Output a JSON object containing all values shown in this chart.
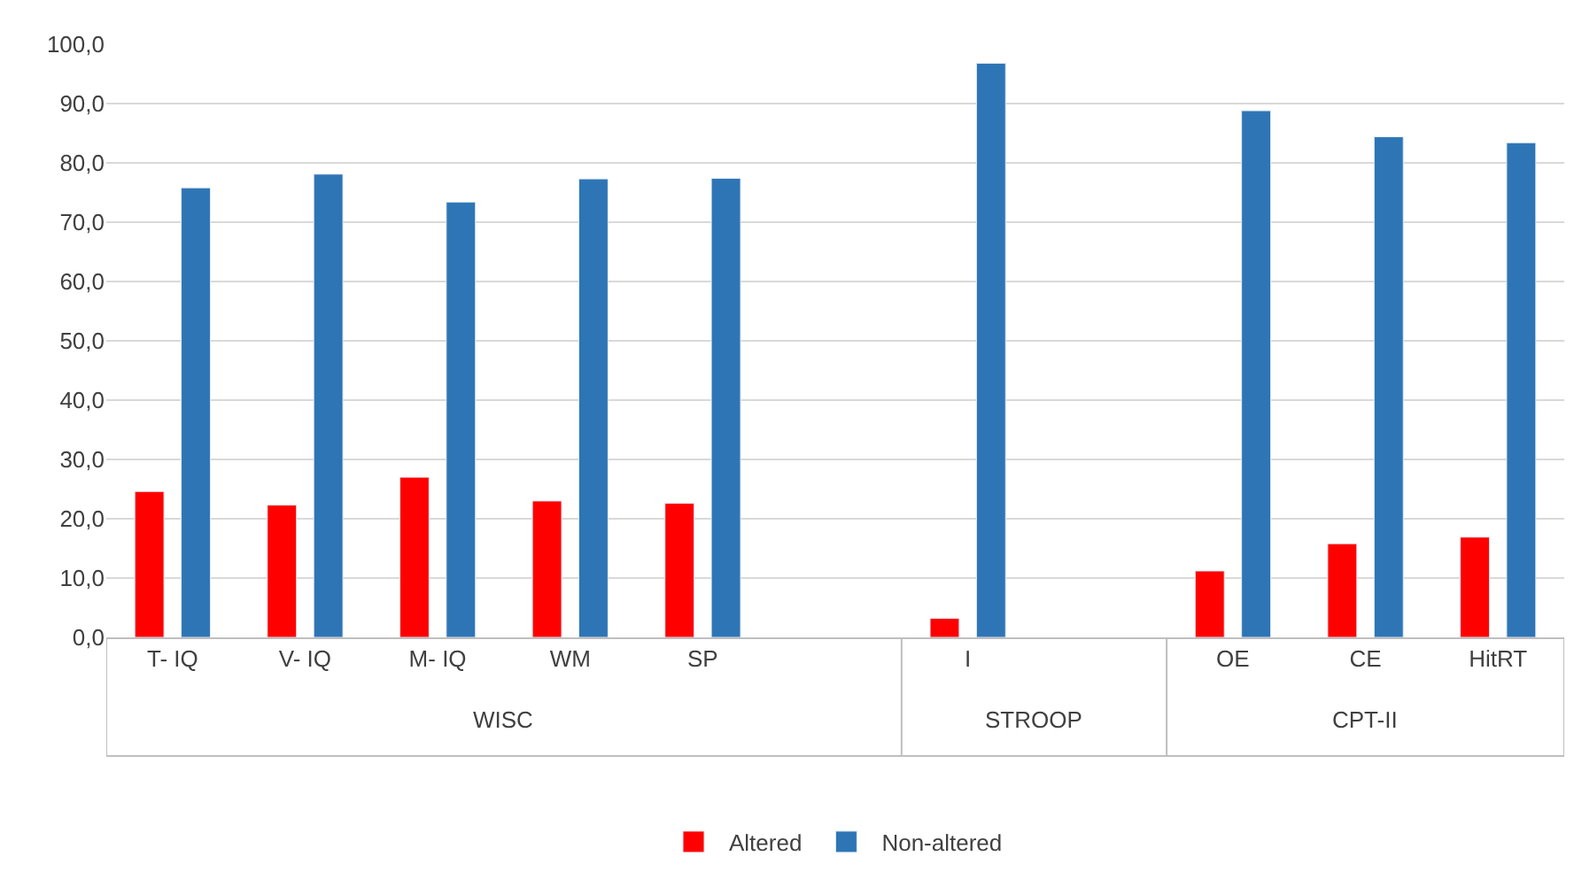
{
  "chart_data": {
    "type": "bar",
    "categories": [
      "T- IQ",
      "V- IQ",
      "M- IQ",
      "WM",
      "SP",
      null,
      "I",
      null,
      "OE",
      "CE",
      "HitRT"
    ],
    "series": [
      {
        "name": "Altered",
        "color": "#ff0000",
        "values": [
          24.6,
          22.3,
          27.0,
          23.0,
          22.6,
          null,
          3.2,
          null,
          11.2,
          15.8,
          16.9
        ]
      },
      {
        "name": "Non-altered",
        "color": "#2e75b6",
        "values": [
          75.8,
          78.1,
          73.4,
          77.3,
          77.4,
          null,
          96.8,
          null,
          88.8,
          84.4,
          83.4
        ]
      }
    ],
    "annotations": [
      "WISC",
      "STROOP",
      "CPT-II"
    ],
    "ylim": [
      0,
      100
    ],
    "yticks": [
      {
        "value": 0,
        "label": "0,0"
      },
      {
        "value": 10,
        "label": "10,0"
      },
      {
        "value": 20,
        "label": "20,0"
      },
      {
        "value": 30,
        "label": "30,0"
      },
      {
        "value": 40,
        "label": "40,0"
      },
      {
        "value": 50,
        "label": "50,0"
      },
      {
        "value": 60,
        "label": "60,0"
      },
      {
        "value": 70,
        "label": "70,0"
      },
      {
        "value": 80,
        "label": "80,0"
      },
      {
        "value": 90,
        "label": "90,0"
      },
      {
        "value": 100,
        "label": "100,0"
      }
    ],
    "grid": "y",
    "legend": "bottom"
  }
}
